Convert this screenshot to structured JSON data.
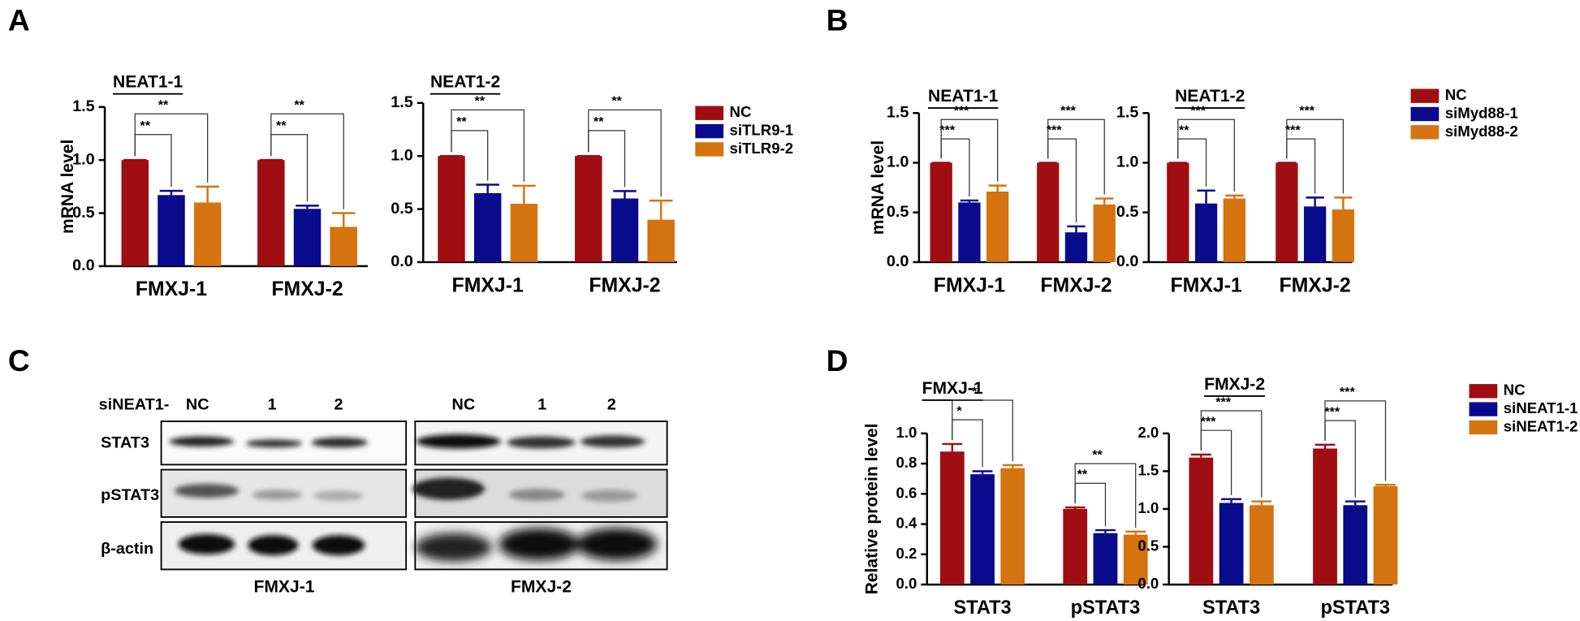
{
  "panels": [
    "A",
    "B",
    "C",
    "D"
  ],
  "blot": {
    "treatment": "siNEAT1-",
    "lanes": [
      [
        "NC",
        "1",
        "2"
      ],
      [
        "NC",
        "1",
        "2"
      ]
    ],
    "proteins": [
      "STAT3",
      "pSTAT3",
      "β-actin"
    ],
    "cells": [
      "FMXJ-1",
      "FMXJ-2"
    ]
  },
  "chart_data": [
    {
      "type": "bar",
      "title": "NEAT1-1",
      "ylabel": "mRNA level",
      "categories": [
        "FMXJ-1",
        "FMXJ-2"
      ],
      "series": [
        {
          "name": "NC",
          "color": "#a00d12",
          "values": [
            1,
            1
          ],
          "errors": [
            0,
            0
          ]
        },
        {
          "name": "siTLR9-1",
          "color": "#0a0a8c",
          "values": [
            0.67,
            0.54
          ],
          "errors": [
            0.04,
            0.03
          ]
        },
        {
          "name": "siTLR9-2",
          "color": "#d4730f",
          "values": [
            0.6,
            0.37
          ],
          "errors": [
            0.15,
            0.13
          ]
        }
      ],
      "ylim": [
        0,
        1.5
      ],
      "yticks": [
        {
          "value": 0,
          "label": "0.0"
        },
        0.5,
        {
          "value": 1,
          "label": "1.0"
        },
        1.5
      ],
      "annotations": [
        "**",
        "**",
        "**",
        "**"
      ]
    },
    {
      "type": "bar",
      "title": "NEAT1-2",
      "categories": [
        "FMXJ-1",
        "FMXJ-2"
      ],
      "series": [
        {
          "color": "#a00d12",
          "values": [
            1,
            1
          ],
          "errors": [
            0,
            0
          ]
        },
        {
          "color": "#0a0a8c",
          "values": [
            0.65,
            0.6
          ],
          "errors": [
            0.08,
            0.07
          ]
        },
        {
          "color": "#d4730f",
          "values": [
            0.55,
            0.4
          ],
          "errors": [
            0.17,
            0.18
          ]
        }
      ],
      "ylim": [
        0,
        1.5
      ],
      "yticks": [
        {
          "value": 0,
          "label": "0.0"
        },
        0.5,
        {
          "value": 1,
          "label": "1.0"
        },
        1.5
      ],
      "annotations": [
        "**",
        "**",
        "**",
        "**"
      ]
    },
    {
      "type": "bar",
      "title": "NEAT1-1",
      "ylabel": "mRNA level",
      "categories": [
        "FMXJ-1",
        "FMXJ-2"
      ],
      "series": [
        {
          "name": "NC",
          "color": "#a00d12",
          "values": [
            1,
            1
          ],
          "errors": [
            0,
            0
          ]
        },
        {
          "name": "siMyd88-1",
          "color": "#0a0a8c",
          "values": [
            0.6,
            0.3
          ],
          "errors": [
            0.02,
            0.06
          ]
        },
        {
          "name": "siMyd88-2",
          "color": "#d4730f",
          "values": [
            0.71,
            0.58
          ],
          "errors": [
            0.06,
            0.06
          ]
        }
      ],
      "ylim": [
        0,
        1.5
      ],
      "yticks": [
        {
          "value": 0,
          "label": "0.0"
        },
        0.5,
        {
          "value": 1,
          "label": "1.0"
        },
        1.5
      ],
      "annotations": [
        "***",
        "***",
        "***",
        "***"
      ]
    },
    {
      "type": "bar",
      "title": "NEAT1-2",
      "categories": [
        "FMXJ-1",
        "FMXJ-2"
      ],
      "series": [
        {
          "color": "#a00d12",
          "values": [
            1,
            1
          ],
          "errors": [
            0,
            0
          ]
        },
        {
          "color": "#0a0a8c",
          "values": [
            0.59,
            0.56
          ],
          "errors": [
            0.13,
            0.09
          ]
        },
        {
          "color": "#d4730f",
          "values": [
            0.64,
            0.53
          ],
          "errors": [
            0.03,
            0.12
          ]
        }
      ],
      "ylim": [
        0,
        1.5
      ],
      "yticks": [
        {
          "value": 0,
          "label": "0.0"
        },
        0.5,
        {
          "value": 1,
          "label": "1.0"
        },
        1.5
      ],
      "annotations": [
        "**",
        "***",
        "***",
        "***"
      ]
    },
    {
      "type": "bar",
      "title": "FMXJ-1",
      "ylabel": "Relative protein level",
      "categories": [
        "STAT3",
        "pSTAT3"
      ],
      "series": [
        {
          "name": "NC",
          "color": "#a00d12",
          "values": [
            0.88,
            0.5
          ],
          "errors": [
            0.05,
            0.01
          ]
        },
        {
          "name": "siNEAT1-1",
          "color": "#0a0a8c",
          "values": [
            0.73,
            0.34
          ],
          "errors": [
            0.02,
            0.02
          ]
        },
        {
          "name": "siNEAT1-2",
          "color": "#d4730f",
          "values": [
            0.77,
            0.33
          ],
          "errors": [
            0.02,
            0.02
          ]
        }
      ],
      "ylim": [
        0,
        1
      ],
      "yticks": [
        {
          "value": 0,
          "label": "0.0"
        },
        0.2,
        0.4,
        0.6,
        0.8,
        {
          "value": 1,
          "label": "1.0"
        }
      ],
      "annotations": [
        "*",
        "*",
        "**",
        "**"
      ]
    },
    {
      "type": "bar",
      "title": "FMXJ-2",
      "categories": [
        "STAT3",
        "pSTAT3"
      ],
      "series": [
        {
          "color": "#a00d12",
          "values": [
            1.68,
            1.8
          ],
          "errors": [
            0.04,
            0.05
          ]
        },
        {
          "color": "#0a0a8c",
          "values": [
            1.08,
            1.05
          ],
          "errors": [
            0.05,
            0.05
          ]
        },
        {
          "color": "#d4730f",
          "values": [
            1.05,
            1.3
          ],
          "errors": [
            0.05,
            0.02
          ]
        }
      ],
      "ylim": [
        0,
        2
      ],
      "yticks": [
        {
          "value": 0,
          "label": "0.0"
        },
        0.5,
        {
          "value": 1,
          "label": "1.0"
        },
        1.5,
        {
          "value": 2,
          "label": "2.0"
        }
      ],
      "annotations": [
        "***",
        "***",
        "***",
        "***"
      ]
    }
  ]
}
